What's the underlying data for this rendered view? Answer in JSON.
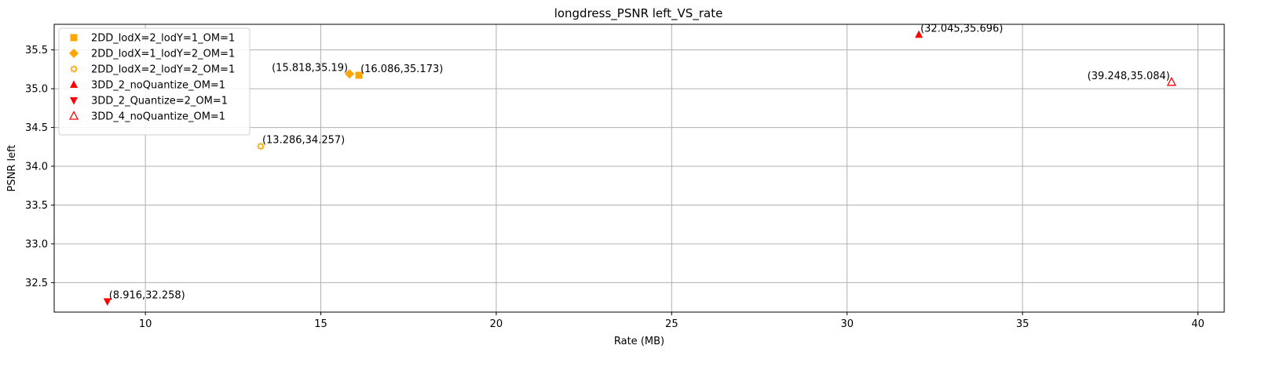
{
  "chart_data": {
    "type": "scatter",
    "title": "longdress_PSNR left_VS_rate",
    "xlabel": "Rate (MB)",
    "ylabel": "PSNR left",
    "xlim": [
      7.4,
      40.75
    ],
    "ylim": [
      32.12,
      35.83
    ],
    "xticks": [
      10,
      15,
      20,
      25,
      30,
      35,
      40
    ],
    "yticks": [
      32.5,
      33.0,
      33.5,
      34.0,
      34.5,
      35.0,
      35.5
    ],
    "xtick_labels": [
      "10",
      "15",
      "20",
      "25",
      "30",
      "35",
      "40"
    ],
    "ytick_labels": [
      "32.5",
      "33.0",
      "33.5",
      "34.0",
      "34.5",
      "35.0",
      "35.5"
    ],
    "grid": true,
    "legend_position": "top-left",
    "series": [
      {
        "name": "2DD_lodX=2_lodY=1_OM=1",
        "marker": "square",
        "color": "#ffa500",
        "filled": true,
        "points": [
          {
            "x": 16.086,
            "y": 35.173,
            "label": "(16.086,35.173)",
            "label_align": "right"
          }
        ]
      },
      {
        "name": "2DD_lodX=1_lodY=2_OM=1",
        "marker": "diamond",
        "color": "#ffa500",
        "filled": true,
        "points": [
          {
            "x": 15.818,
            "y": 35.19,
            "label": "(15.818,35.19)",
            "label_align": "left"
          }
        ]
      },
      {
        "name": "2DD_lodX=2_lodY=2_OM=1",
        "marker": "gear",
        "color": "#ffa500",
        "filled": false,
        "points": [
          {
            "x": 13.286,
            "y": 34.257,
            "label": "(13.286,34.257)",
            "label_align": "right"
          }
        ]
      },
      {
        "name": "3DD_2_noQuantize_OM=1",
        "marker": "triangle-up",
        "color": "#ff0000",
        "filled": true,
        "points": [
          {
            "x": 32.045,
            "y": 35.696,
            "label": "(32.045,35.696)",
            "label_align": "right"
          }
        ]
      },
      {
        "name": "3DD_2_Quantize=2_OM=1",
        "marker": "triangle-down",
        "color": "#ff0000",
        "filled": true,
        "points": [
          {
            "x": 8.916,
            "y": 32.258,
            "label": "(8.916,32.258)",
            "label_align": "right"
          }
        ]
      },
      {
        "name": "3DD_4_noQuantize_OM=1",
        "marker": "triangle-up",
        "color": "#ff0000",
        "filled": false,
        "points": [
          {
            "x": 39.248,
            "y": 35.084,
            "label": "(39.248,35.084)",
            "label_align": "left"
          }
        ]
      }
    ]
  }
}
